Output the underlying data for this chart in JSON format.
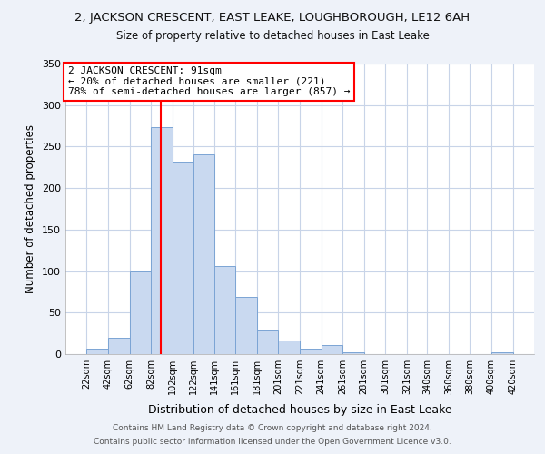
{
  "title": "2, JACKSON CRESCENT, EAST LEAKE, LOUGHBOROUGH, LE12 6AH",
  "subtitle": "Size of property relative to detached houses in East Leake",
  "xlabel": "Distribution of detached houses by size in East Leake",
  "ylabel": "Number of detached properties",
  "bar_color": "#c9d9f0",
  "bar_edge_color": "#7ba4d4",
  "vline_x": 91,
  "vline_color": "red",
  "annotation_lines": [
    "2 JACKSON CRESCENT: 91sqm",
    "← 20% of detached houses are smaller (221)",
    "78% of semi-detached houses are larger (857) →"
  ],
  "annotation_box_color": "white",
  "annotation_box_edge_color": "red",
  "bin_edges": [
    22,
    42,
    62,
    82,
    102,
    122,
    141,
    161,
    181,
    201,
    221,
    241,
    261,
    281,
    301,
    321,
    340,
    360,
    380,
    400,
    420
  ],
  "bar_heights": [
    7,
    20,
    99,
    273,
    232,
    241,
    106,
    69,
    30,
    16,
    7,
    11,
    2,
    0,
    0,
    0,
    0,
    0,
    0,
    2
  ],
  "ylim": [
    0,
    350
  ],
  "yticks": [
    0,
    50,
    100,
    150,
    200,
    250,
    300,
    350
  ],
  "footer_lines": [
    "Contains HM Land Registry data © Crown copyright and database right 2024.",
    "Contains public sector information licensed under the Open Government Licence v3.0."
  ],
  "background_color": "#eef2f9",
  "plot_bg_color": "white",
  "grid_color": "#c8d4e8"
}
